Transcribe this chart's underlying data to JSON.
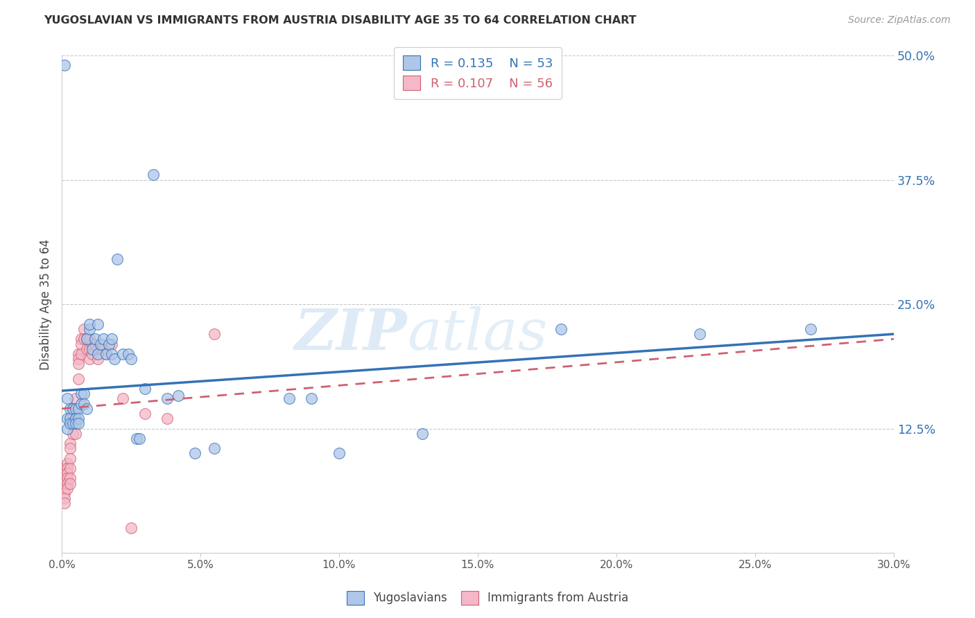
{
  "title": "YUGOSLAVIAN VS IMMIGRANTS FROM AUSTRIA DISABILITY AGE 35 TO 64 CORRELATION CHART",
  "source": "Source: ZipAtlas.com",
  "ylabel": "Disability Age 35 to 64",
  "series1_label": "Yugoslavians",
  "series2_label": "Immigrants from Austria",
  "series1_R": "0.135",
  "series1_N": "53",
  "series2_R": "0.107",
  "series2_N": "56",
  "series1_color": "#aec6e8",
  "series1_line_color": "#3472b5",
  "series2_color": "#f4b8c8",
  "series2_line_color": "#d06070",
  "xlim": [
    0.0,
    0.3
  ],
  "ylim": [
    0.0,
    0.5
  ],
  "yticks": [
    0.0,
    0.125,
    0.25,
    0.375,
    0.5
  ],
  "ytick_labels": [
    "",
    "12.5%",
    "25.0%",
    "37.5%",
    "50.0%"
  ],
  "watermark_zip": "ZIP",
  "watermark_atlas": "atlas",
  "background_color": "#ffffff",
  "grid_color": "#c8c8c8",
  "series1_x": [
    0.001,
    0.002,
    0.002,
    0.002,
    0.003,
    0.003,
    0.003,
    0.004,
    0.004,
    0.005,
    0.005,
    0.005,
    0.006,
    0.006,
    0.006,
    0.007,
    0.007,
    0.008,
    0.008,
    0.009,
    0.009,
    0.01,
    0.01,
    0.011,
    0.012,
    0.013,
    0.013,
    0.014,
    0.015,
    0.016,
    0.017,
    0.018,
    0.018,
    0.019,
    0.02,
    0.022,
    0.024,
    0.025,
    0.027,
    0.028,
    0.03,
    0.033,
    0.038,
    0.042,
    0.048,
    0.055,
    0.082,
    0.09,
    0.1,
    0.13,
    0.18,
    0.23,
    0.27
  ],
  "series1_y": [
    0.49,
    0.155,
    0.135,
    0.125,
    0.145,
    0.135,
    0.13,
    0.145,
    0.13,
    0.145,
    0.135,
    0.13,
    0.145,
    0.135,
    0.13,
    0.16,
    0.15,
    0.16,
    0.15,
    0.145,
    0.215,
    0.225,
    0.23,
    0.205,
    0.215,
    0.23,
    0.2,
    0.21,
    0.215,
    0.2,
    0.21,
    0.2,
    0.215,
    0.195,
    0.295,
    0.2,
    0.2,
    0.195,
    0.115,
    0.115,
    0.165,
    0.38,
    0.155,
    0.158,
    0.1,
    0.105,
    0.155,
    0.155,
    0.1,
    0.12,
    0.225,
    0.22,
    0.225
  ],
  "series2_x": [
    0.0,
    0.0,
    0.001,
    0.001,
    0.001,
    0.001,
    0.001,
    0.001,
    0.001,
    0.002,
    0.002,
    0.002,
    0.002,
    0.002,
    0.002,
    0.003,
    0.003,
    0.003,
    0.003,
    0.003,
    0.003,
    0.004,
    0.004,
    0.004,
    0.005,
    0.005,
    0.005,
    0.005,
    0.006,
    0.006,
    0.006,
    0.006,
    0.007,
    0.007,
    0.007,
    0.008,
    0.008,
    0.009,
    0.009,
    0.01,
    0.01,
    0.01,
    0.011,
    0.011,
    0.012,
    0.013,
    0.013,
    0.014,
    0.015,
    0.016,
    0.018,
    0.022,
    0.025,
    0.03,
    0.038,
    0.055
  ],
  "series2_y": [
    0.075,
    0.07,
    0.085,
    0.08,
    0.07,
    0.065,
    0.06,
    0.055,
    0.05,
    0.09,
    0.085,
    0.08,
    0.075,
    0.07,
    0.065,
    0.11,
    0.105,
    0.095,
    0.085,
    0.075,
    0.07,
    0.145,
    0.135,
    0.12,
    0.155,
    0.145,
    0.135,
    0.12,
    0.2,
    0.195,
    0.19,
    0.175,
    0.215,
    0.21,
    0.2,
    0.225,
    0.215,
    0.215,
    0.205,
    0.215,
    0.205,
    0.195,
    0.21,
    0.2,
    0.21,
    0.205,
    0.195,
    0.205,
    0.205,
    0.2,
    0.21,
    0.155,
    0.025,
    0.14,
    0.135,
    0.22
  ],
  "trend1_x0": 0.0,
  "trend1_y0": 0.163,
  "trend1_x1": 0.3,
  "trend1_y1": 0.22,
  "trend2_x0": 0.0,
  "trend2_y0": 0.145,
  "trend2_x1": 0.3,
  "trend2_y1": 0.215
}
